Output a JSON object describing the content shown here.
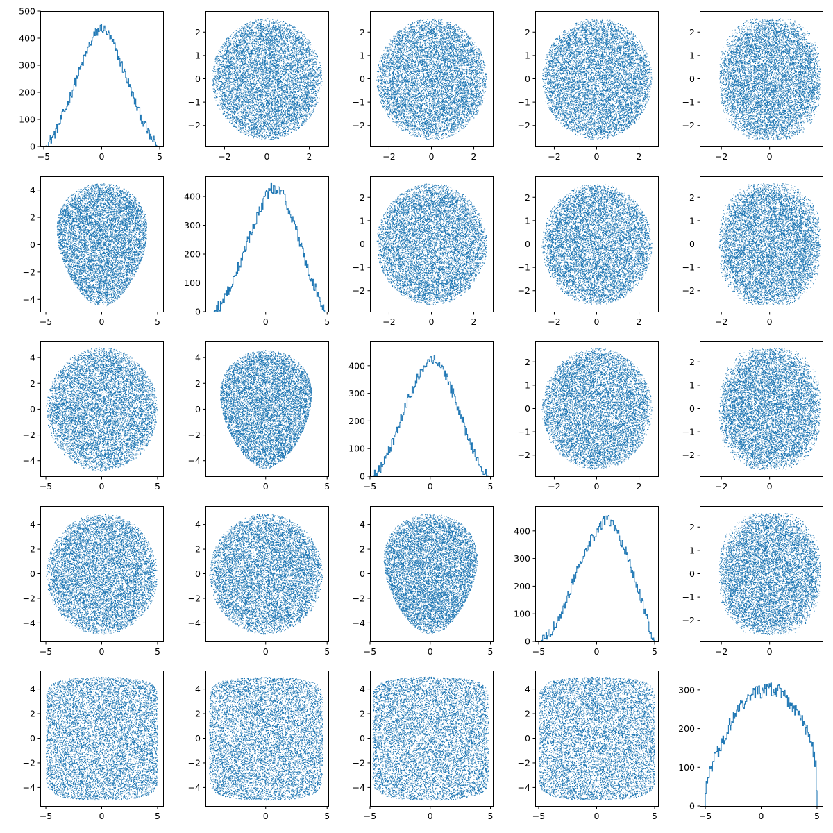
{
  "figure": {
    "type": "scatter-matrix",
    "rows": 5,
    "cols": 5,
    "color": "#1f77b4",
    "background": "#ffffff"
  },
  "chart_data": [
    {
      "row": 0,
      "col": 0,
      "type": "hist",
      "xlim": [
        -5.3,
        5.3
      ],
      "ylim": [
        0,
        500
      ],
      "xticks": [
        "-5",
        "0",
        "5"
      ],
      "xtickvals": [
        -5,
        0,
        5
      ],
      "yticks": [
        "0",
        "100",
        "200",
        "300",
        "400",
        "500"
      ],
      "ytickvals": [
        0,
        100,
        200,
        300,
        400,
        500
      ],
      "bins_x": [
        -4.8,
        -4.0,
        -3.0,
        -2.0,
        -1.0,
        -0.5,
        0.0,
        0.5,
        1.0,
        2.0,
        3.0,
        4.0,
        4.8
      ],
      "bins_y": [
        0,
        50,
        150,
        270,
        380,
        420,
        440,
        420,
        380,
        270,
        150,
        50,
        0
      ],
      "noise": 20
    },
    {
      "row": 0,
      "col": 1,
      "type": "scatter",
      "shape": "disk",
      "xlim": [
        -2.9,
        2.9
      ],
      "ylim": [
        -2.9,
        2.9
      ],
      "xticks": [
        "-2",
        "0",
        "2"
      ],
      "xtickvals": [
        -2,
        0,
        2
      ],
      "yticks": [
        "-2",
        "-1",
        "0",
        "1",
        "2"
      ],
      "ytickvals": [
        -2,
        -1,
        0,
        1,
        2
      ],
      "rx": 2.6,
      "ry": 2.6,
      "n": 9000
    },
    {
      "row": 0,
      "col": 2,
      "type": "scatter",
      "shape": "disk",
      "xlim": [
        -2.9,
        2.9
      ],
      "ylim": [
        -2.9,
        2.9
      ],
      "xticks": [
        "-2",
        "0",
        "2"
      ],
      "xtickvals": [
        -2,
        0,
        2
      ],
      "yticks": [
        "-2",
        "-1",
        "0",
        "1",
        "2"
      ],
      "ytickvals": [
        -2,
        -1,
        0,
        1,
        2
      ],
      "rx": 2.6,
      "ry": 2.6,
      "n": 9000
    },
    {
      "row": 0,
      "col": 3,
      "type": "scatter",
      "shape": "disk",
      "xlim": [
        -2.9,
        2.9
      ],
      "ylim": [
        -2.9,
        2.9
      ],
      "xticks": [
        "-2",
        "0",
        "2"
      ],
      "xtickvals": [
        -2,
        0,
        2
      ],
      "yticks": [
        "-2",
        "-1",
        "0",
        "1",
        "2"
      ],
      "ytickvals": [
        -2,
        -1,
        0,
        1,
        2
      ],
      "rx": 2.6,
      "ry": 2.6,
      "n": 9000
    },
    {
      "row": 0,
      "col": 4,
      "type": "scatter",
      "shape": "rounded-box",
      "xlim": [
        -2.9,
        2.2
      ],
      "ylim": [
        -2.9,
        2.9
      ],
      "xticks": [
        "-2",
        "0"
      ],
      "xtickvals": [
        -2,
        0
      ],
      "yticks": [
        "-2",
        "-1",
        "0",
        "1",
        "2"
      ],
      "ytickvals": [
        -2,
        -1,
        0,
        1,
        2
      ],
      "rx": 2.1,
      "ry": 2.6,
      "n": 9000
    },
    {
      "row": 1,
      "col": 0,
      "type": "scatter",
      "shape": "triangle",
      "xlim": [
        -5.5,
        5.5
      ],
      "ylim": [
        -4.9,
        5.0
      ],
      "xticks": [
        "-5",
        "0",
        "5"
      ],
      "xtickvals": [
        -5,
        0,
        5
      ],
      "yticks": [
        "-4",
        "-2",
        "0",
        "2",
        "4"
      ],
      "ytickvals": [
        -4,
        -2,
        0,
        2,
        4
      ],
      "rx": 5.0,
      "ry": 4.5,
      "n": 9000
    },
    {
      "row": 1,
      "col": 1,
      "type": "hist",
      "xlim": [
        -4.9,
        5.1
      ],
      "ylim": [
        0,
        470
      ],
      "xticks": [
        "0",
        "5"
      ],
      "xtickvals": [
        0,
        5
      ],
      "yticks": [
        "0",
        "100",
        "200",
        "300",
        "400"
      ],
      "ytickvals": [
        0,
        100,
        200,
        300,
        400
      ],
      "bins_x": [
        -4.2,
        -3.5,
        -2.5,
        -1.5,
        -0.5,
        0.0,
        0.5,
        1.0,
        1.5,
        2.5,
        3.5,
        4.5,
        4.8
      ],
      "bins_y": [
        0,
        30,
        120,
        240,
        350,
        400,
        430,
        420,
        400,
        280,
        140,
        30,
        0
      ],
      "noise": 20
    },
    {
      "row": 1,
      "col": 2,
      "type": "scatter",
      "shape": "disk",
      "xlim": [
        -2.9,
        2.9
      ],
      "ylim": [
        -2.9,
        2.9
      ],
      "xticks": [
        "-2",
        "0",
        "2"
      ],
      "xtickvals": [
        -2,
        0,
        2
      ],
      "yticks": [
        "-2",
        "-1",
        "0",
        "1",
        "2"
      ],
      "ytickvals": [
        -2,
        -1,
        0,
        1,
        2
      ],
      "rx": 2.6,
      "ry": 2.6,
      "n": 9000
    },
    {
      "row": 1,
      "col": 3,
      "type": "scatter",
      "shape": "disk",
      "xlim": [
        -2.9,
        2.9
      ],
      "ylim": [
        -2.9,
        2.9
      ],
      "xticks": [
        "-2",
        "0",
        "2"
      ],
      "xtickvals": [
        -2,
        0,
        2
      ],
      "yticks": [
        "-2",
        "-1",
        "0",
        "1",
        "2"
      ],
      "ytickvals": [
        -2,
        -1,
        0,
        1,
        2
      ],
      "rx": 2.6,
      "ry": 2.6,
      "n": 9000
    },
    {
      "row": 1,
      "col": 4,
      "type": "scatter",
      "shape": "rounded-box",
      "xlim": [
        -2.9,
        2.2
      ],
      "ylim": [
        -2.9,
        2.9
      ],
      "xticks": [
        "-2",
        "0"
      ],
      "xtickvals": [
        -2,
        0
      ],
      "yticks": [
        "-2",
        "-1",
        "0",
        "1",
        "2"
      ],
      "ytickvals": [
        -2,
        -1,
        0,
        1,
        2
      ],
      "rx": 2.1,
      "ry": 2.6,
      "n": 9000
    },
    {
      "row": 2,
      "col": 0,
      "type": "scatter",
      "shape": "blob",
      "xlim": [
        -5.5,
        5.5
      ],
      "ylim": [
        -5.2,
        5.3
      ],
      "xticks": [
        "-5",
        "0",
        "5"
      ],
      "xtickvals": [
        -5,
        0,
        5
      ],
      "yticks": [
        "-4",
        "-2",
        "0",
        "2",
        "4"
      ],
      "ytickvals": [
        -4,
        -2,
        0,
        2,
        4
      ],
      "rx": 5.0,
      "ry": 4.8,
      "n": 9000
    },
    {
      "row": 2,
      "col": 1,
      "type": "scatter",
      "shape": "triangle",
      "xlim": [
        -4.9,
        5.1
      ],
      "ylim": [
        -5.2,
        5.3
      ],
      "xticks": [
        "0",
        "5"
      ],
      "xtickvals": [
        0,
        5
      ],
      "yticks": [
        "-4",
        "-2",
        "0",
        "2",
        "4"
      ],
      "ytickvals": [
        -4,
        -2,
        0,
        2,
        4
      ],
      "rx": 4.6,
      "ry": 4.6,
      "n": 9000
    },
    {
      "row": 2,
      "col": 2,
      "type": "hist",
      "xlim": [
        -5.0,
        5.2
      ],
      "ylim": [
        0,
        490
      ],
      "xticks": [
        "-5",
        "0",
        "5"
      ],
      "xtickvals": [
        -5,
        0,
        5
      ],
      "yticks": [
        "0",
        "100",
        "200",
        "300",
        "400"
      ],
      "ytickvals": [
        0,
        100,
        200,
        300,
        400
      ],
      "bins_x": [
        -4.7,
        -4.0,
        -3.0,
        -2.0,
        -1.0,
        -0.5,
        0.0,
        0.5,
        1.0,
        2.0,
        3.0,
        4.0,
        4.8
      ],
      "bins_y": [
        0,
        40,
        130,
        260,
        360,
        400,
        420,
        420,
        390,
        290,
        160,
        50,
        0
      ],
      "noise": 20
    },
    {
      "row": 2,
      "col": 3,
      "type": "scatter",
      "shape": "disk",
      "xlim": [
        -2.9,
        2.9
      ],
      "ylim": [
        -2.9,
        2.9
      ],
      "xticks": [
        "-2",
        "0",
        "2"
      ],
      "xtickvals": [
        -2,
        0,
        2
      ],
      "yticks": [
        "-2",
        "-1",
        "0",
        "1",
        "2"
      ],
      "ytickvals": [
        -2,
        -1,
        0,
        1,
        2
      ],
      "rx": 2.6,
      "ry": 2.6,
      "n": 9000
    },
    {
      "row": 2,
      "col": 4,
      "type": "scatter",
      "shape": "rounded-box",
      "xlim": [
        -2.9,
        2.2
      ],
      "ylim": [
        -2.9,
        2.9
      ],
      "xticks": [
        "-2",
        "0"
      ],
      "xtickvals": [
        -2,
        0
      ],
      "yticks": [
        "-2",
        "-1",
        "0",
        "1",
        "2"
      ],
      "ytickvals": [
        -2,
        -1,
        0,
        1,
        2
      ],
      "rx": 2.1,
      "ry": 2.6,
      "n": 9000
    },
    {
      "row": 3,
      "col": 0,
      "type": "scatter",
      "shape": "blob",
      "xlim": [
        -5.5,
        5.5
      ],
      "ylim": [
        -5.5,
        5.5
      ],
      "xticks": [
        "-5",
        "0",
        "5"
      ],
      "xtickvals": [
        -5,
        0,
        5
      ],
      "yticks": [
        "-4",
        "-2",
        "0",
        "2",
        "4"
      ],
      "ytickvals": [
        -4,
        -2,
        0,
        2,
        4
      ],
      "rx": 5.0,
      "ry": 4.9,
      "n": 9000
    },
    {
      "row": 3,
      "col": 1,
      "type": "scatter",
      "shape": "blob",
      "xlim": [
        -4.9,
        5.1
      ],
      "ylim": [
        -5.5,
        5.5
      ],
      "xticks": [
        "0",
        "5"
      ],
      "xtickvals": [
        0,
        5
      ],
      "yticks": [
        "-4",
        "-2",
        "0",
        "2",
        "4"
      ],
      "ytickvals": [
        -4,
        -2,
        0,
        2,
        4
      ],
      "rx": 4.6,
      "ry": 4.9,
      "n": 9000
    },
    {
      "row": 3,
      "col": 2,
      "type": "scatter",
      "shape": "triangle",
      "xlim": [
        -5.0,
        5.2
      ],
      "ylim": [
        -5.5,
        5.5
      ],
      "xticks": [
        "-5",
        "0",
        "5"
      ],
      "xtickvals": [
        -5,
        0,
        5
      ],
      "yticks": [
        "-4",
        "-2",
        "0",
        "2",
        "4"
      ],
      "ytickvals": [
        -4,
        -2,
        0,
        2,
        4
      ],
      "rx": 4.8,
      "ry": 4.9,
      "n": 9000
    },
    {
      "row": 3,
      "col": 3,
      "type": "hist",
      "xlim": [
        -5.3,
        5.3
      ],
      "ylim": [
        0,
        490
      ],
      "xticks": [
        "-5",
        "0",
        "5"
      ],
      "xtickvals": [
        -5,
        0,
        5
      ],
      "yticks": [
        "0",
        "100",
        "200",
        "300",
        "400"
      ],
      "ytickvals": [
        0,
        100,
        200,
        300,
        400
      ],
      "bins_x": [
        -4.8,
        -4.0,
        -3.0,
        -2.0,
        -1.0,
        0.0,
        0.5,
        1.0,
        1.5,
        2.5,
        3.5,
        4.5,
        5.0
      ],
      "bins_y": [
        0,
        30,
        110,
        220,
        330,
        400,
        430,
        440,
        420,
        330,
        200,
        60,
        0
      ],
      "noise": 20
    },
    {
      "row": 3,
      "col": 4,
      "type": "scatter",
      "shape": "rounded-box",
      "xlim": [
        -2.9,
        2.2
      ],
      "ylim": [
        -2.9,
        2.9
      ],
      "xticks": [
        "-2",
        "0"
      ],
      "xtickvals": [
        -2,
        0
      ],
      "yticks": [
        "-2",
        "-1",
        "0",
        "1",
        "2"
      ],
      "ytickvals": [
        -2,
        -1,
        0,
        1,
        2
      ],
      "rx": 2.1,
      "ry": 2.6,
      "n": 9000
    },
    {
      "row": 4,
      "col": 0,
      "type": "scatter",
      "shape": "bar-clipped",
      "xlim": [
        -5.5,
        5.5
      ],
      "ylim": [
        -5.5,
        5.5
      ],
      "xticks": [
        "-5",
        "0",
        "5"
      ],
      "xtickvals": [
        -5,
        0,
        5
      ],
      "yticks": [
        "-4",
        "-2",
        "0",
        "2",
        "4"
      ],
      "ytickvals": [
        -4,
        -2,
        0,
        2,
        4
      ],
      "rx": 5.0,
      "ry": 5.0,
      "n": 9000
    },
    {
      "row": 4,
      "col": 1,
      "type": "scatter",
      "shape": "bar-clipped",
      "xlim": [
        -4.9,
        5.1
      ],
      "ylim": [
        -5.5,
        5.5
      ],
      "xticks": [
        "0",
        "5"
      ],
      "xtickvals": [
        0,
        5
      ],
      "yticks": [
        "-4",
        "-2",
        "0",
        "2",
        "4"
      ],
      "ytickvals": [
        -4,
        -2,
        0,
        2,
        4
      ],
      "rx": 4.6,
      "ry": 5.0,
      "n": 9000
    },
    {
      "row": 4,
      "col": 2,
      "type": "scatter",
      "shape": "bar-clipped",
      "xlim": [
        -5.0,
        5.2
      ],
      "ylim": [
        -5.5,
        5.5
      ],
      "xticks": [
        "-5",
        "0",
        "5"
      ],
      "xtickvals": [
        -5,
        0,
        5
      ],
      "yticks": [
        "-4",
        "-2",
        "0",
        "2",
        "4"
      ],
      "ytickvals": [
        -4,
        -2,
        0,
        2,
        4
      ],
      "rx": 4.8,
      "ry": 5.0,
      "n": 9000
    },
    {
      "row": 4,
      "col": 3,
      "type": "scatter",
      "shape": "bar-clipped",
      "xlim": [
        -5.3,
        5.3
      ],
      "ylim": [
        -5.5,
        5.5
      ],
      "xticks": [
        "-5",
        "0",
        "5"
      ],
      "xtickvals": [
        -5,
        0,
        5
      ],
      "yticks": [
        "-4",
        "-2",
        "0",
        "2",
        "4"
      ],
      "ytickvals": [
        -4,
        -2,
        0,
        2,
        4
      ],
      "rx": 5.0,
      "ry": 5.0,
      "n": 9000
    },
    {
      "row": 4,
      "col": 4,
      "type": "hist",
      "xlim": [
        -5.5,
        5.5
      ],
      "ylim": [
        0,
        350
      ],
      "xticks": [
        "-5",
        "0",
        "5"
      ],
      "xtickvals": [
        -5,
        0,
        5
      ],
      "yticks": [
        "0",
        "100",
        "200",
        "300"
      ],
      "ytickvals": [
        0,
        100,
        200,
        300
      ],
      "bins_x": [
        -5.0,
        -4.9,
        -4.5,
        -3.5,
        -2.5,
        -1.5,
        -0.5,
        0.5,
        1.5,
        2.5,
        3.5,
        4.5,
        4.9,
        5.0
      ],
      "bins_y": [
        0,
        70,
        100,
        160,
        230,
        270,
        290,
        300,
        300,
        270,
        230,
        170,
        100,
        0
      ],
      "noise": 18
    }
  ]
}
